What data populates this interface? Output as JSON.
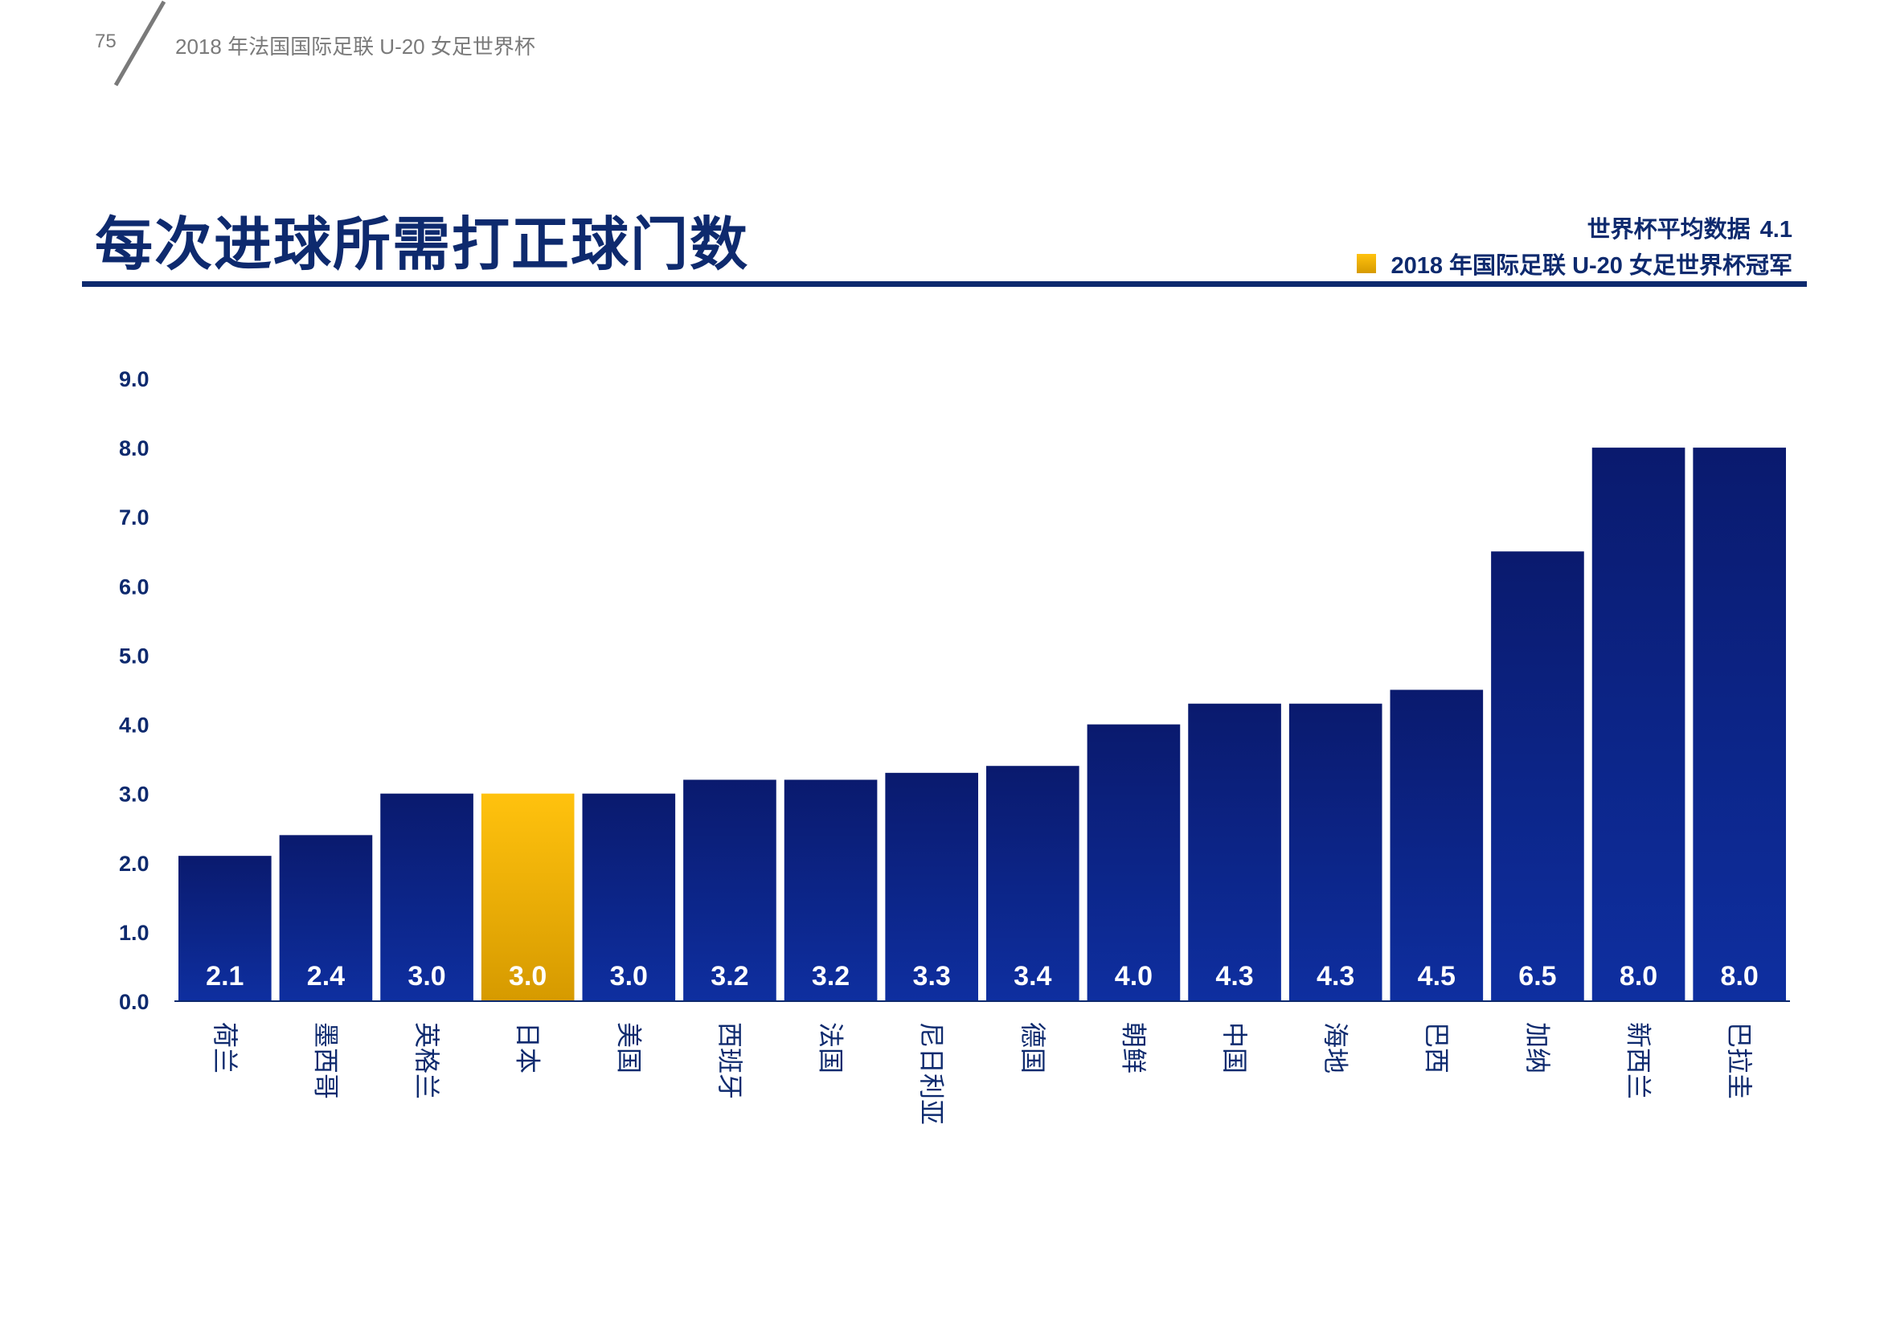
{
  "header": {
    "page_number": "75",
    "running_title": "2018 年法国国际足联 U-20 女足世界杯"
  },
  "title": "每次进球所需打正球门数",
  "legend": {
    "average_label": "世界杯平均数据",
    "average_value": "4.1",
    "champion_label": "2018 年国际足联 U-20 女足世界杯冠军"
  },
  "colors": {
    "primary": "#0e2a6e",
    "bar_top": "#0a1a6e",
    "bar_bottom": "#0e2fa0",
    "highlight_top": "#ffc20e",
    "highlight_bottom": "#d69a00"
  },
  "chart_data": {
    "type": "bar",
    "categories": [
      "荷兰",
      "墨西哥",
      "英格兰",
      "日本",
      "美国",
      "西班牙",
      "法国",
      "尼日利亚",
      "德国",
      "朝鲜",
      "中国",
      "海地",
      "巴西",
      "加纳",
      "新西兰",
      "巴拉圭"
    ],
    "values": [
      2.1,
      2.4,
      3.0,
      3.0,
      3.0,
      3.2,
      3.2,
      3.3,
      3.4,
      4.0,
      4.3,
      4.3,
      4.5,
      6.5,
      8.0,
      8.0
    ],
    "value_labels": [
      "2.1",
      "2.4",
      "3.0",
      "3.0",
      "3.0",
      "3.2",
      "3.2",
      "3.3",
      "3.4",
      "4.0",
      "4.3",
      "4.3",
      "4.5",
      "6.5",
      "8.0",
      "8.0"
    ],
    "highlight": "日本",
    "yticks": [
      "0.0",
      "1.0",
      "2.0",
      "3.0",
      "4.0",
      "5.0",
      "6.0",
      "7.0",
      "8.0",
      "9.0"
    ],
    "ylim": [
      0,
      9
    ],
    "grid": false,
    "legend_position": "top-right"
  }
}
